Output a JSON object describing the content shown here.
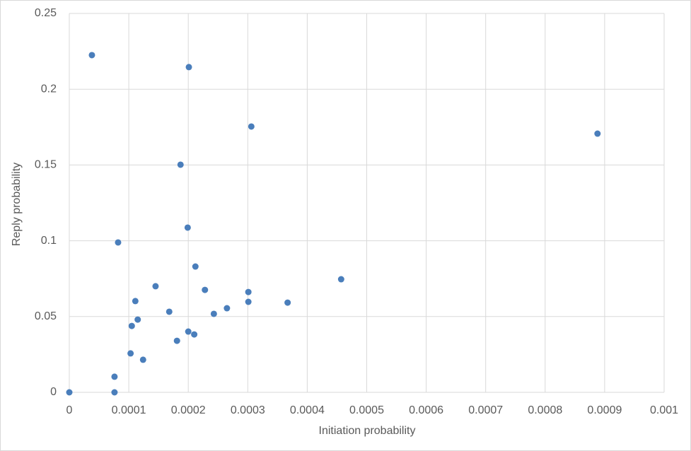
{
  "chart_data": {
    "type": "scatter",
    "xlabel": "Initiation probability",
    "ylabel": "Reply probability",
    "series": [
      {
        "color": "#4a7ebb",
        "x": [
          3.8e-05,
          0.000201,
          0.000306,
          0.000888,
          0.000187,
          0.000199,
          8.2e-05,
          0.000212,
          0.000457,
          0.000145,
          0.000228,
          0.000301,
          0.000111,
          0.000301,
          0.000367,
          0.000265,
          0.000168,
          0.000243,
          0.000115,
          0.000105,
          0.0002,
          0.00021,
          0.000181,
          0.000103,
          0.000124,
          7.6e-05,
          7.6e-05,
          0.0
        ],
        "values": [
          0.2225,
          0.2146,
          0.1754,
          0.1707,
          0.1502,
          0.1087,
          0.0989,
          0.083,
          0.0746,
          0.07,
          0.0676,
          0.0662,
          0.0602,
          0.0597,
          0.0592,
          0.0555,
          0.0532,
          0.0518,
          0.048,
          0.0438,
          0.0401,
          0.0382,
          0.034,
          0.0257,
          0.0215,
          0.0103,
          0.0,
          0.0
        ]
      }
    ],
    "xlim": [
      0,
      0.001
    ],
    "xticks": [
      0,
      0.0001,
      0.0002,
      0.0003,
      0.0004,
      0.0005,
      0.0006,
      0.0007,
      0.0008,
      0.0009,
      0.001
    ],
    "ylim": [
      0,
      0.25
    ],
    "yticks": [
      0,
      0.05,
      0.1,
      0.15,
      0.2,
      0.25
    ],
    "grid": true
  }
}
